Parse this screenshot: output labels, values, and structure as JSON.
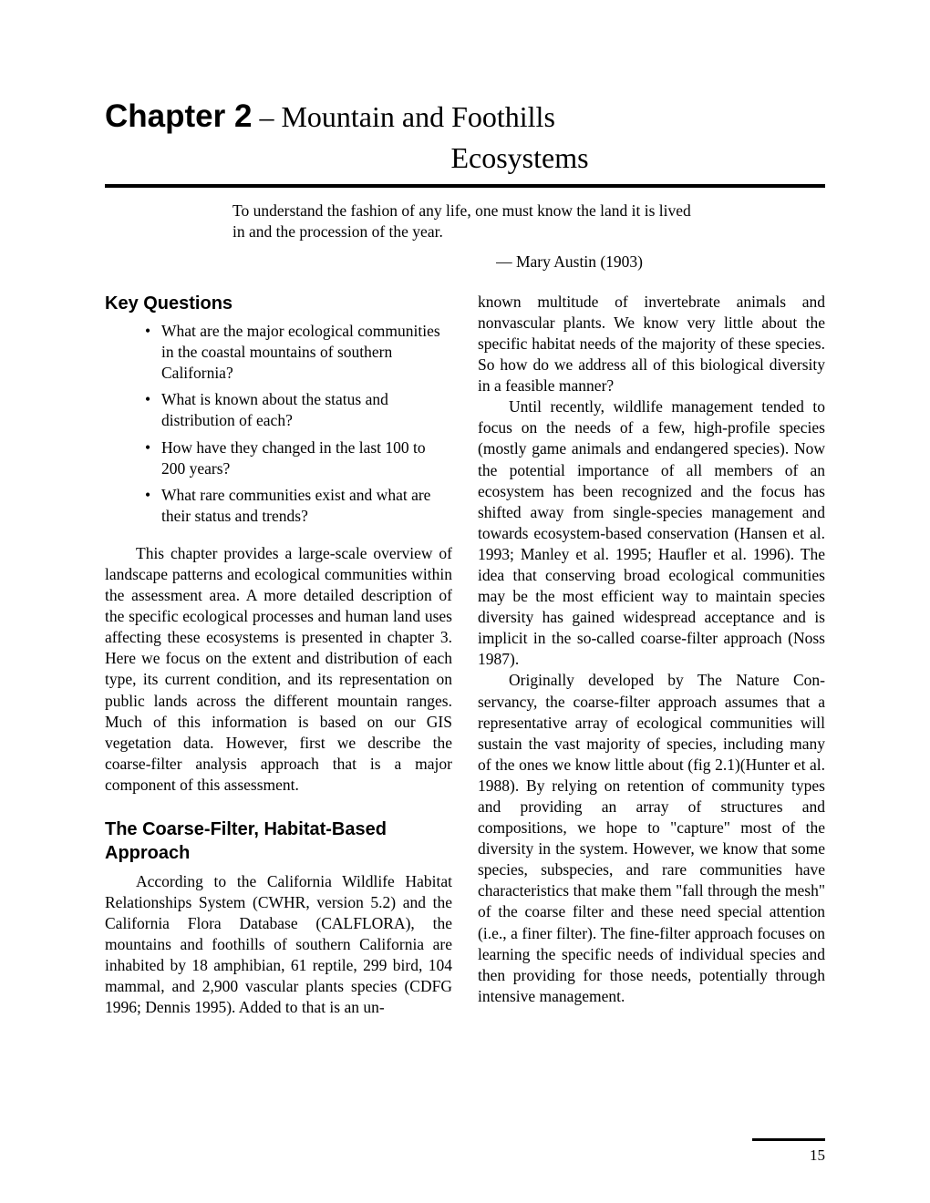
{
  "chapter": {
    "label": "Chapter 2",
    "separator": " – ",
    "title_line1": "Mountain and Foothills",
    "title_line2": "Ecosystems"
  },
  "epigraph": {
    "text": "To understand the fashion of any life, one must know the land it is lived in and the procession of the year.",
    "attribution": "— Mary Austin (1903)"
  },
  "key_questions": {
    "heading": "Key Questions",
    "items": [
      "What are the major ecological communities in the coastal mountains of southern California?",
      "What is known about the status and distribution of each?",
      "How have they changed in the last 100 to 200 years?",
      "What rare communities exist and what are their status and trends?"
    ]
  },
  "paragraphs": {
    "p1": "This chapter provides a large-scale over­view of landscape patterns and ecological communities within the assessment area. A more detailed description of the specific eco­logical processes and human land uses affecting these ecosystems is presented in chapter 3. Here we focus on the extent and distribution of each type, its current condition, and its rep­resentation on public lands across the different mountain ranges. Much of this information is based on our GIS vegetation data. How­ever, first we describe the coarse-filter analysis approach that is a major component of this assessment."
  },
  "coarse_filter": {
    "heading": "The Coarse-Filter, Habitat-Based Approach",
    "p1": "According to the California Wildlife Habi­tat Relationships System (CWHR, version 5.2) and the California Flora Database (CALFLORA), the mountains and foothills of southern California are inhabited by 18 amphibian, 61 reptile, 299 bird, 104 mam­mal, and 2,900 vascular plants species (CDFG 1996; Dennis 1995). Added to that is an un-"
  },
  "right_col": {
    "p1": "known multitude of invertebrate animals and nonvascular plants. We know very little about the specific habitat needs of the majority of these species. So how do we address all of this biological diversity in a feasible manner?",
    "p2": "Until recently, wildlife management tended to focus on the needs of a few, high-profile species (mostly game animals and endangered species). Now the potential im­portance of all members of an ecosystem has been recognized and the focus has shifted away from single-species management and towards ecosystem-based conservation (Hansen et al. 1993; Manley et al. 1995; Haufler et al. 1996). The idea that conserving broad ecological communities may be the most efficient way to maintain species diversity has gained wide­spread acceptance and is implicit in the so-called coarse-filter approach (Noss 1987).",
    "p3": "Originally developed by The Nature Con­servancy, the coarse-filter approach assumes that a representative array of ecological communities will sustain the vast majority of species, includ­ing many of the ones we know little about (fig 2.1)(Hunter et al. 1988). By relying on reten­tion of community types and providing an array of structures and compositions, we hope to \"cap­ture\" most of the diversity in the system. However, we know that some species, subspe­cies, and rare communities have characteristics that make them \"fall through the mesh\" of the coarse filter and these need special attention (i.e., a finer filter). The fine-filter approach focuses on learning the specific needs of individual spe­cies and then providing for those needs, potentially through intensive management."
  },
  "page_number": "15"
}
